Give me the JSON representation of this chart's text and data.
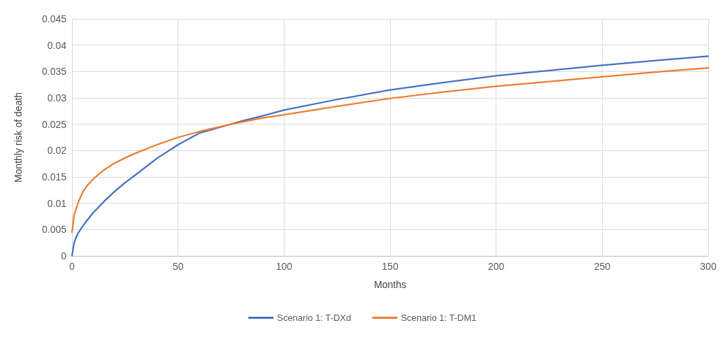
{
  "chart_data": {
    "type": "line",
    "xlabel": "Months",
    "ylabel": "Monthly risk of death",
    "xlim": [
      0,
      300
    ],
    "xticks": [
      0,
      50,
      100,
      150,
      200,
      250,
      300
    ],
    "ylim": [
      0,
      0.045
    ],
    "yticks": [
      0,
      0.005,
      0.01,
      0.015,
      0.02,
      0.025,
      0.03,
      0.035,
      0.04,
      0.045
    ],
    "grid": true,
    "legend": "bottom",
    "marker": "none",
    "line_style": "solid",
    "series": [
      {
        "name": "Scenario 1: T-DXd",
        "color": "#4472c4",
        "x": [
          0,
          1,
          2,
          3,
          5,
          7,
          10,
          15,
          20,
          25,
          30,
          40,
          50,
          60,
          80,
          90,
          100,
          125,
          150,
          175,
          200,
          225,
          250,
          275,
          300
        ],
        "values": [
          0,
          0.0025,
          0.0036,
          0.0044,
          0.0056,
          0.0067,
          0.0082,
          0.0103,
          0.0122,
          0.0139,
          0.0154,
          0.0185,
          0.0211,
          0.0233,
          0.0256,
          0.0266,
          0.0277,
          0.0297,
          0.0315,
          0.0329,
          0.0342,
          0.0352,
          0.0362,
          0.0371,
          0.0379
        ]
      },
      {
        "name": "Scenario 1: T-DM1",
        "color": "#ed7d31",
        "x": [
          0,
          1,
          2,
          3,
          5,
          7,
          10,
          15,
          20,
          25,
          30,
          40,
          50,
          60,
          75,
          90,
          100,
          125,
          150,
          175,
          200,
          225,
          250,
          275,
          300
        ],
        "values": [
          0.0045,
          0.0078,
          0.009,
          0.0102,
          0.0121,
          0.0133,
          0.0146,
          0.0163,
          0.0176,
          0.0186,
          0.0195,
          0.0211,
          0.0225,
          0.0236,
          0.025,
          0.0262,
          0.0268,
          0.0284,
          0.0299,
          0.0311,
          0.0322,
          0.0331,
          0.034,
          0.0349,
          0.0357
        ]
      }
    ]
  }
}
